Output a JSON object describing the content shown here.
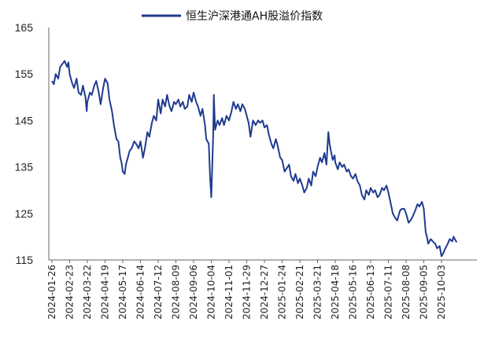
{
  "chart_data": {
    "type": "line",
    "title": "",
    "xlabel": "",
    "ylabel": "",
    "ylim": [
      115,
      165
    ],
    "yticks": [
      115,
      125,
      135,
      145,
      155,
      165
    ],
    "grid": false,
    "legend_position": "top-center",
    "line_color": "#1F3B8F",
    "x_tick_labels": [
      "2024-01-26",
      "2024-02-23",
      "2024-03-22",
      "2024-04-19",
      "2024-05-17",
      "2024-06-14",
      "2024-07-12",
      "2024-08-09",
      "2024-09-06",
      "2024-10-04",
      "2024-11-01",
      "2024-11-29",
      "2024-12-27",
      "2025-01-24",
      "2025-02-21",
      "2025-03-21",
      "2025-04-18",
      "2025-05-16",
      "2025-06-13",
      "2025-07-11",
      "2025-08-08",
      "2025-09-05",
      "2025-10-03"
    ],
    "series": [
      {
        "name": "恒生沪深港通AH股溢价指数",
        "points": [
          [
            "2024-01-26",
            153.5
          ],
          [
            "2024-01-29",
            152.8
          ],
          [
            "2024-02-01",
            155.0
          ],
          [
            "2024-02-05",
            154.0
          ],
          [
            "2024-02-08",
            156.5
          ],
          [
            "2024-02-15",
            157.8
          ],
          [
            "2024-02-19",
            156.5
          ],
          [
            "2024-02-21",
            157.5
          ],
          [
            "2024-02-23",
            155.0
          ],
          [
            "2024-02-27",
            153.0
          ],
          [
            "2024-03-01",
            152.0
          ],
          [
            "2024-03-05",
            154.0
          ],
          [
            "2024-03-08",
            151.0
          ],
          [
            "2024-03-12",
            150.5
          ],
          [
            "2024-03-15",
            152.5
          ],
          [
            "2024-03-19",
            150.0
          ],
          [
            "2024-03-21",
            147.0
          ],
          [
            "2024-03-22",
            149.0
          ],
          [
            "2024-03-26",
            151.0
          ],
          [
            "2024-03-29",
            150.5
          ],
          [
            "2024-04-02",
            152.5
          ],
          [
            "2024-04-05",
            153.5
          ],
          [
            "2024-04-09",
            151.0
          ],
          [
            "2024-04-12",
            148.5
          ],
          [
            "2024-04-16",
            152.0
          ],
          [
            "2024-04-19",
            154.0
          ],
          [
            "2024-04-23",
            153.0
          ],
          [
            "2024-04-26",
            149.5
          ],
          [
            "2024-04-30",
            147.0
          ],
          [
            "2024-05-03",
            144.0
          ],
          [
            "2024-05-07",
            141.0
          ],
          [
            "2024-05-10",
            140.5
          ],
          [
            "2024-05-13",
            137.0
          ],
          [
            "2024-05-15",
            136.0
          ],
          [
            "2024-05-17",
            134.0
          ],
          [
            "2024-05-20",
            133.5
          ],
          [
            "2024-05-22",
            135.5
          ],
          [
            "2024-05-24",
            136.5
          ],
          [
            "2024-05-28",
            138.5
          ],
          [
            "2024-05-31",
            139.0
          ],
          [
            "2024-06-04",
            140.5
          ],
          [
            "2024-06-07",
            140.0
          ],
          [
            "2024-06-11",
            139.0
          ],
          [
            "2024-06-14",
            140.5
          ],
          [
            "2024-06-18",
            137.0
          ],
          [
            "2024-06-21",
            139.0
          ],
          [
            "2024-06-25",
            142.5
          ],
          [
            "2024-06-28",
            141.5
          ],
          [
            "2024-07-02",
            144.5
          ],
          [
            "2024-07-05",
            146.0
          ],
          [
            "2024-07-09",
            145.0
          ],
          [
            "2024-07-12",
            149.5
          ],
          [
            "2024-07-16",
            146.5
          ],
          [
            "2024-07-19",
            149.5
          ],
          [
            "2024-07-23",
            148.0
          ],
          [
            "2024-07-26",
            150.5
          ],
          [
            "2024-07-30",
            148.0
          ],
          [
            "2024-08-02",
            147.0
          ],
          [
            "2024-08-06",
            149.0
          ],
          [
            "2024-08-09",
            148.5
          ],
          [
            "2024-08-13",
            149.5
          ],
          [
            "2024-08-16",
            148.0
          ],
          [
            "2024-08-20",
            149.0
          ],
          [
            "2024-08-23",
            147.5
          ],
          [
            "2024-08-27",
            148.0
          ],
          [
            "2024-08-30",
            150.5
          ],
          [
            "2024-09-03",
            149.0
          ],
          [
            "2024-09-06",
            151.0
          ],
          [
            "2024-09-10",
            149.0
          ],
          [
            "2024-09-13",
            148.0
          ],
          [
            "2024-09-17",
            146.0
          ],
          [
            "2024-09-20",
            147.5
          ],
          [
            "2024-09-24",
            144.0
          ],
          [
            "2024-09-26",
            141.0
          ],
          [
            "2024-09-30",
            140.0
          ],
          [
            "2024-10-02",
            133.0
          ],
          [
            "2024-10-04",
            128.5
          ],
          [
            "2024-10-07",
            142.0
          ],
          [
            "2024-10-08",
            150.5
          ],
          [
            "2024-10-10",
            143.0
          ],
          [
            "2024-10-14",
            145.0
          ],
          [
            "2024-10-17",
            144.0
          ],
          [
            "2024-10-21",
            145.5
          ],
          [
            "2024-10-24",
            144.0
          ],
          [
            "2024-10-28",
            146.0
          ],
          [
            "2024-11-01",
            145.0
          ],
          [
            "2024-11-05",
            147.0
          ],
          [
            "2024-11-08",
            149.0
          ],
          [
            "2024-11-12",
            147.5
          ],
          [
            "2024-11-15",
            148.5
          ],
          [
            "2024-11-19",
            147.0
          ],
          [
            "2024-11-22",
            148.5
          ],
          [
            "2024-11-26",
            147.5
          ],
          [
            "2024-11-29",
            146.0
          ],
          [
            "2024-12-02",
            144.5
          ],
          [
            "2024-12-05",
            141.5
          ],
          [
            "2024-12-09",
            145.0
          ],
          [
            "2024-12-13",
            144.0
          ],
          [
            "2024-12-17",
            145.0
          ],
          [
            "2024-12-20",
            144.5
          ],
          [
            "2024-12-24",
            145.0
          ],
          [
            "2024-12-27",
            143.5
          ],
          [
            "2024-12-31",
            144.0
          ],
          [
            "2025-01-03",
            142.0
          ],
          [
            "2025-01-07",
            140.0
          ],
          [
            "2025-01-10",
            139.0
          ],
          [
            "2025-01-14",
            141.0
          ],
          [
            "2025-01-17",
            139.5
          ],
          [
            "2025-01-21",
            137.0
          ],
          [
            "2025-01-24",
            136.5
          ],
          [
            "2025-01-28",
            134.0
          ],
          [
            "2025-02-04",
            135.5
          ],
          [
            "2025-02-07",
            133.0
          ],
          [
            "2025-02-11",
            132.0
          ],
          [
            "2025-02-14",
            133.5
          ],
          [
            "2025-02-18",
            131.5
          ],
          [
            "2025-02-21",
            132.5
          ],
          [
            "2025-02-25",
            131.0
          ],
          [
            "2025-02-28",
            129.5
          ],
          [
            "2025-03-04",
            130.5
          ],
          [
            "2025-03-07",
            132.5
          ],
          [
            "2025-03-11",
            131.0
          ],
          [
            "2025-03-14",
            134.0
          ],
          [
            "2025-03-18",
            133.0
          ],
          [
            "2025-03-21",
            135.0
          ],
          [
            "2025-03-25",
            137.0
          ],
          [
            "2025-03-28",
            136.0
          ],
          [
            "2025-04-01",
            138.0
          ],
          [
            "2025-04-04",
            135.5
          ],
          [
            "2025-04-07",
            142.5
          ],
          [
            "2025-04-09",
            140.0
          ],
          [
            "2025-04-11",
            138.5
          ],
          [
            "2025-04-14",
            136.5
          ],
          [
            "2025-04-17",
            137.5
          ],
          [
            "2025-04-18",
            136.0
          ],
          [
            "2025-04-22",
            134.5
          ],
          [
            "2025-04-25",
            136.0
          ],
          [
            "2025-04-29",
            135.0
          ],
          [
            "2025-05-02",
            135.5
          ],
          [
            "2025-05-06",
            134.0
          ],
          [
            "2025-05-09",
            134.5
          ],
          [
            "2025-05-13",
            133.0
          ],
          [
            "2025-05-16",
            132.5
          ],
          [
            "2025-05-20",
            133.5
          ],
          [
            "2025-05-23",
            132.0
          ],
          [
            "2025-05-27",
            131.0
          ],
          [
            "2025-05-30",
            129.0
          ],
          [
            "2025-06-03",
            128.0
          ],
          [
            "2025-06-06",
            130.0
          ],
          [
            "2025-06-10",
            129.0
          ],
          [
            "2025-06-13",
            130.5
          ],
          [
            "2025-06-17",
            129.5
          ],
          [
            "2025-06-20",
            130.0
          ],
          [
            "2025-06-24",
            128.5
          ],
          [
            "2025-06-27",
            129.0
          ],
          [
            "2025-07-01",
            130.5
          ],
          [
            "2025-07-04",
            130.0
          ],
          [
            "2025-07-08",
            131.0
          ],
          [
            "2025-07-11",
            129.5
          ],
          [
            "2025-07-15",
            127.0
          ],
          [
            "2025-07-18",
            125.0
          ],
          [
            "2025-07-22",
            124.0
          ],
          [
            "2025-07-25",
            123.5
          ],
          [
            "2025-07-29",
            125.5
          ],
          [
            "2025-08-01",
            126.0
          ],
          [
            "2025-08-05",
            126.0
          ],
          [
            "2025-08-08",
            125.0
          ],
          [
            "2025-08-12",
            123.0
          ],
          [
            "2025-08-15",
            123.5
          ],
          [
            "2025-08-19",
            124.5
          ],
          [
            "2025-08-22",
            125.5
          ],
          [
            "2025-08-26",
            127.0
          ],
          [
            "2025-08-29",
            126.5
          ],
          [
            "2025-09-02",
            127.5
          ],
          [
            "2025-09-05",
            126.0
          ],
          [
            "2025-09-08",
            121.0
          ],
          [
            "2025-09-10",
            120.0
          ],
          [
            "2025-09-12",
            118.5
          ],
          [
            "2025-09-16",
            119.5
          ],
          [
            "2025-09-19",
            119.0
          ],
          [
            "2025-09-23",
            118.5
          ],
          [
            "2025-09-26",
            117.5
          ],
          [
            "2025-09-30",
            118.0
          ],
          [
            "2025-10-03",
            115.8
          ],
          [
            "2025-10-06",
            116.5
          ],
          [
            "2025-10-09",
            117.5
          ],
          [
            "2025-10-13",
            118.5
          ],
          [
            "2025-10-16",
            119.5
          ],
          [
            "2025-10-20",
            119.0
          ],
          [
            "2025-10-22",
            120.0
          ],
          [
            "2025-10-24",
            119.5
          ],
          [
            "2025-10-27",
            118.8
          ]
        ]
      }
    ]
  }
}
